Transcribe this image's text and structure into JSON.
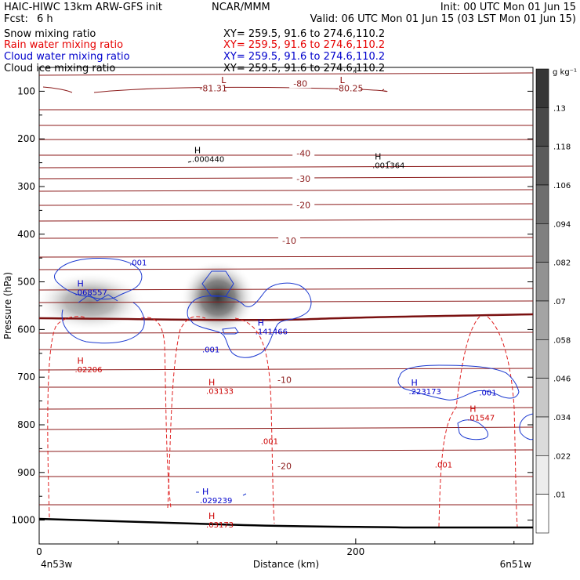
{
  "header": {
    "title": "HAIC-HIWC 13km ARW-GFS init",
    "org": "NCAR/MMM",
    "init": "Init: 00 UTC Mon 01 Jun 15",
    "fcst_label": "Fcst:",
    "fcst_value": "6 h",
    "valid": "Valid: 06 UTC Mon 01 Jun 15 (03 LST Mon 01 Jun 15)",
    "fields": [
      {
        "name": "Snow mixing ratio",
        "xy": "XY= 259.5, 91.6 to 274.6,110.2",
        "color": "#000000"
      },
      {
        "name": "Rain water mixing ratio",
        "xy": "XY= 259.5, 91.6 to 274.6,110.2",
        "color": "#e60000"
      },
      {
        "name": "Cloud water mixing ratio",
        "xy": "XY= 259.5, 91.6 to 274.6,110.2",
        "color": "#0000cc"
      },
      {
        "name": "Cloud ice mixing ratio",
        "xy": "XY= 259.5, 91.6 to 274.6,110.2",
        "color": "#000000"
      }
    ]
  },
  "chart_data": {
    "type": "cross-section contour",
    "xlabel": "Distance (km)",
    "ylabel": "Pressure (hPa)",
    "x_ticks": [
      "0",
      "200"
    ],
    "y_ticks": [
      "100",
      "200",
      "300",
      "400",
      "500",
      "600",
      "700",
      "800",
      "900",
      "1000"
    ],
    "xlim": [
      0,
      312
    ],
    "ylim": [
      1050,
      50
    ],
    "x_endpoints": {
      "left": "4n53w",
      "right": "6n51w"
    },
    "colorbar": {
      "unit": "g kg⁻¹",
      "labels": [
        ".13",
        ".118",
        ".106",
        ".094",
        ".082",
        ".07",
        ".058",
        ".046",
        ".034",
        ".022",
        ".01"
      ]
    },
    "temperature_labels": [
      {
        "text": "-80",
        "x": 165,
        "p": 90
      },
      {
        "text": "-81.31",
        "x": 110,
        "p": 100
      },
      {
        "text": "-80.25",
        "x": 196,
        "p": 100
      },
      {
        "text": "-40",
        "x": 167,
        "p": 237
      },
      {
        "text": "-30",
        "x": 167,
        "p": 290
      },
      {
        "text": "-20",
        "x": 167,
        "p": 345
      },
      {
        "text": "-10",
        "x": 158,
        "p": 420
      },
      {
        "text": "-10",
        "x": 155,
        "p": 712
      },
      {
        "text": "-20",
        "x": 155,
        "p": 893
      }
    ],
    "extrema": [
      {
        "letter": "L",
        "value": "",
        "x": 115,
        "p": 83,
        "color": "#8b0000"
      },
      {
        "letter": "L",
        "value": "",
        "x": 190,
        "p": 83,
        "color": "#8b0000"
      },
      {
        "letter": "H",
        "value": ".000440",
        "x": 98,
        "p": 230,
        "color": "#000000"
      },
      {
        "letter": "H",
        "value": ".001364",
        "x": 212,
        "p": 243,
        "color": "#000000"
      },
      {
        "letter": "H",
        "value": ".068557",
        "x": 24,
        "p": 510,
        "color": "#0000cc"
      },
      {
        "letter": "H",
        "value": ".141466",
        "x": 138,
        "p": 592,
        "color": "#0000cc"
      },
      {
        "letter": "H",
        "value": ".02206",
        "x": 24,
        "p": 672,
        "color": "#cc0000"
      },
      {
        "letter": "H",
        "value": ".03133",
        "x": 107,
        "p": 717,
        "color": "#cc0000"
      },
      {
        "letter": "H",
        "value": ".223173",
        "x": 235,
        "p": 718,
        "color": "#0000cc"
      },
      {
        "letter": "H",
        "value": ".01547",
        "x": 272,
        "p": 773,
        "color": "#cc0000"
      },
      {
        "letter": "H",
        "value": ".029239",
        "x": 103,
        "p": 946,
        "color": "#0000cc"
      },
      {
        "letter": "H",
        "value": ".03173",
        "x": 107,
        "p": 997,
        "color": "#cc0000"
      }
    ],
    "contour_labels": [
      {
        "text": ".001",
        "x": 57,
        "p": 465,
        "color": "#0000cc"
      },
      {
        "text": ".001",
        "x": 103,
        "p": 648,
        "color": "#0000cc"
      },
      {
        "text": ".001",
        "x": 278,
        "p": 738,
        "color": "#0000cc"
      },
      {
        "text": ".001",
        "x": 140,
        "p": 840,
        "color": "#cc0000"
      },
      {
        "text": ".001",
        "x": 250,
        "p": 890,
        "color": "#cc0000"
      }
    ]
  }
}
